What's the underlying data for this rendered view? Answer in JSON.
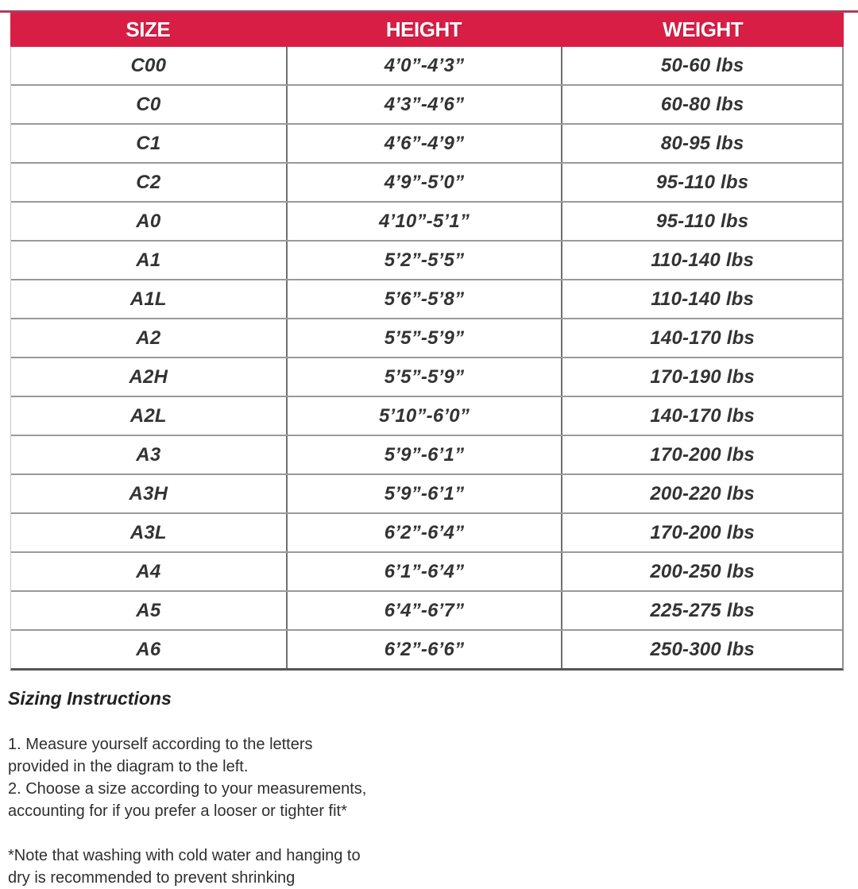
{
  "colors": {
    "header_bg": "#d91e46",
    "header_text": "#ffffff",
    "top_line": "#a93f60",
    "row_line": "#9a9a9a",
    "column_line": "#6f6f6f",
    "cell_text": "#333333"
  },
  "size_chart": {
    "columns": [
      "SIZE",
      "HEIGHT",
      "WEIGHT"
    ],
    "rows": [
      [
        "C00",
        "4’0”-4’3”",
        "50-60 lbs"
      ],
      [
        "C0",
        "4’3”-4’6”",
        "60-80 lbs"
      ],
      [
        "C1",
        "4’6”-4’9”",
        "80-95 lbs"
      ],
      [
        "C2",
        "4’9”-5’0”",
        "95-110 lbs"
      ],
      [
        "A0",
        "4’10”-5’1”",
        "95-110 lbs"
      ],
      [
        "A1",
        "5’2”-5’5”",
        "110-140 lbs"
      ],
      [
        "A1L",
        "5’6”-5’8”",
        "110-140 lbs"
      ],
      [
        "A2",
        "5’5”-5’9”",
        "140-170 lbs"
      ],
      [
        "A2H",
        "5’5”-5’9”",
        "170-190 lbs"
      ],
      [
        "A2L",
        "5’10”-6’0”",
        "140-170 lbs"
      ],
      [
        "A3",
        "5’9”-6’1”",
        "170-200 lbs"
      ],
      [
        "A3H",
        "5’9”-6’1”",
        "200-220 lbs"
      ],
      [
        "A3L",
        "6’2”-6’4”",
        "170-200 lbs"
      ],
      [
        "A4",
        "6’1”-6’4”",
        "200-250 lbs"
      ],
      [
        "A5",
        "6’4”-6’7”",
        "225-275 lbs"
      ],
      [
        "A6",
        "6’2”-6’6”",
        "250-300 lbs"
      ]
    ]
  },
  "instructions": {
    "heading": "Sizing Instructions",
    "steps": [
      "1. Measure yourself according to the letters",
      "provided in the diagram to the left.",
      "2. Choose a size according to your measurements,",
      "accounting for if you prefer a looser or tighter fit*"
    ],
    "note": [
      "*Note that washing with cold water and hanging to",
      "dry is recommended to prevent shrinking"
    ]
  }
}
